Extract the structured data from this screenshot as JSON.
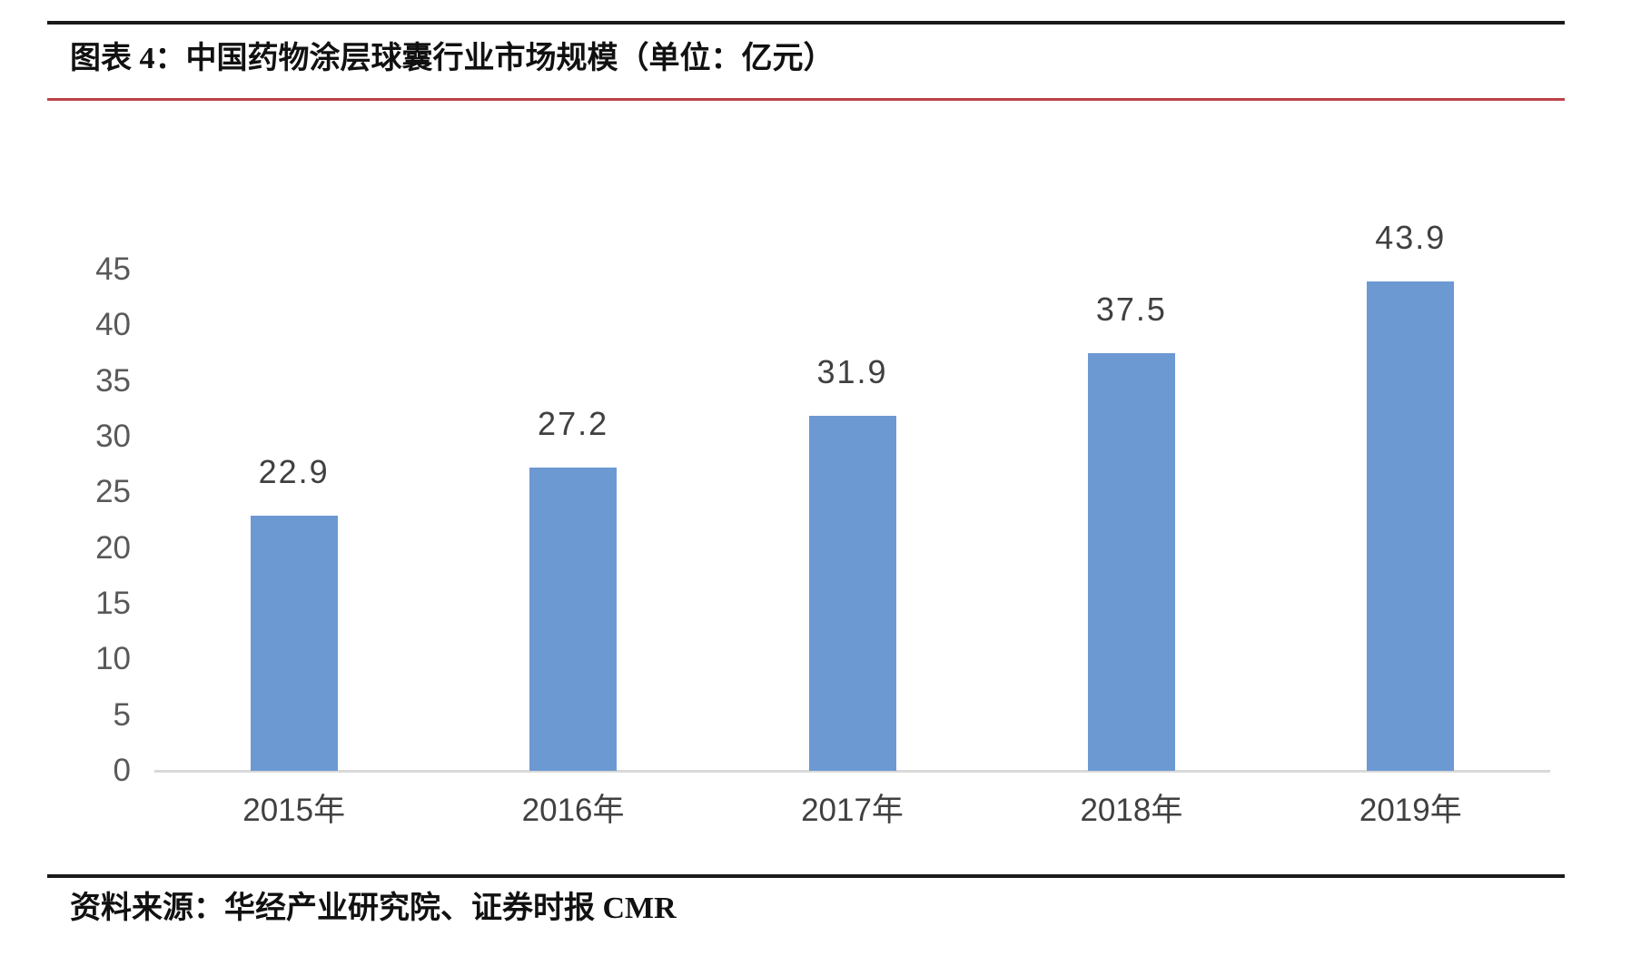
{
  "figure": {
    "title": "图表 4：中国药物涂层球囊行业市场规模（单位：亿元）",
    "source": "资料来源：华经产业研究院、证券时报 CMR"
  },
  "colors": {
    "rule_dark": "#1a1a1a",
    "rule_red": "#bd4247",
    "bar": "#6c99d2",
    "axis_line": "#d9d9d9",
    "axis_label": "#595959",
    "value_label": "#404040"
  },
  "chart_data": {
    "type": "bar",
    "title": "中国药物涂层球囊行业市场规模",
    "unit": "亿元",
    "categories": [
      "2015年",
      "2016年",
      "2017年",
      "2018年",
      "2019年"
    ],
    "values": [
      22.9,
      27.2,
      31.9,
      37.5,
      43.9
    ],
    "value_labels": [
      "22.9",
      "27.2",
      "31.9",
      "37.5",
      "43.9"
    ],
    "ylim": [
      0,
      45
    ],
    "ytick_step": 5,
    "yticks": [
      0,
      5,
      10,
      15,
      20,
      25,
      30,
      35,
      40,
      45
    ],
    "grid": false,
    "legend": "none",
    "bar_color": "#6c99d2"
  }
}
